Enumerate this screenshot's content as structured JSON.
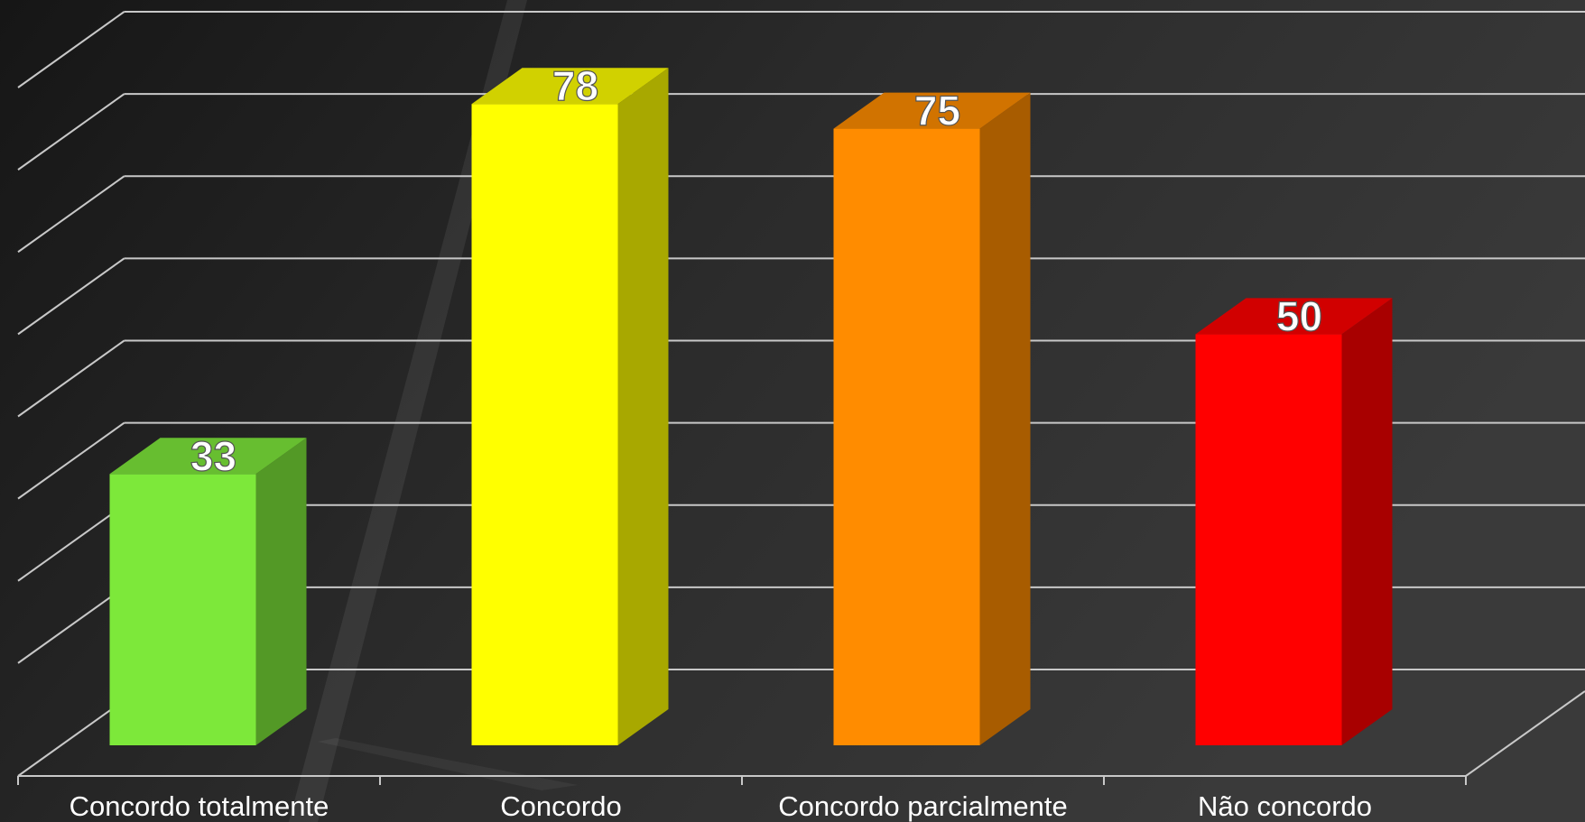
{
  "chart_data": {
    "type": "bar",
    "categories": [
      "Concordo totalmente",
      "Concordo",
      "Concordo parcialmente",
      "Não concordo"
    ],
    "values": [
      33,
      78,
      75,
      50
    ],
    "colors": [
      "#7de83a",
      "#ffff00",
      "#ff8c00",
      "#ff0000"
    ],
    "ylim": [
      0,
      80
    ],
    "grid": true,
    "legend": "none",
    "title": "",
    "xlabel": "",
    "ylabel": ""
  }
}
